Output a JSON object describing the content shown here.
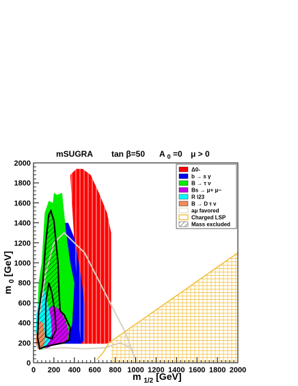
{
  "chart_data": {
    "type": "area",
    "title_parts": [
      "mSUGRA",
      "tan β=50",
      "A",
      "0",
      "=0",
      "μ > 0"
    ],
    "xlabel_main": "m",
    "xlabel_sub": "1/2",
    "xlabel_unit": " [GeV]",
    "ylabel_main": "m",
    "ylabel_sub": "0",
    "ylabel_unit": " [GeV]",
    "xlim": [
      0,
      2000
    ],
    "ylim": [
      0,
      2000
    ],
    "x_ticks": [
      "0",
      "200",
      "400",
      "600",
      "800",
      "1000",
      "1200",
      "1400",
      "1600",
      "1800",
      "2000"
    ],
    "y_ticks": [
      "0",
      "200",
      "400",
      "600",
      "800",
      "1000",
      "1200",
      "1400",
      "1600",
      "1800",
      "2000"
    ],
    "legend_position": "top-right",
    "legend": [
      {
        "label": "Δ0-",
        "color": "#ff0000",
        "style": "fill"
      },
      {
        "label": "b → s γ",
        "color": "#0000ee",
        "style": "fill"
      },
      {
        "label": "B → τ ν",
        "color": "#00ee00",
        "style": "fill"
      },
      {
        "label": "Bs → μ+ μ−",
        "color": "#cc00ee",
        "style": "fill"
      },
      {
        "label": "R l23",
        "color": "#00ffff",
        "style": "fill"
      },
      {
        "label": "B → D τ ν",
        "color": "#f08c5a",
        "style": "fill"
      },
      {
        "label": "aμ favored",
        "color": "#e8e0c8",
        "style": "outline"
      },
      {
        "label": "Charged LSP",
        "color": "#f0c040",
        "style": "outline"
      },
      {
        "label": "Mass excluded",
        "color": "#000000",
        "style": "hatch"
      }
    ],
    "regions": [
      {
        "name": "Δ0- excluded",
        "color": "#ff0000",
        "points": [
          [
            460,
            190
          ],
          [
            700,
            190
          ],
          [
            760,
            200
          ],
          [
            760,
            1300
          ],
          [
            720,
            1500
          ],
          [
            640,
            1700
          ],
          [
            560,
            1880
          ],
          [
            480,
            1940
          ],
          [
            420,
            1940
          ],
          [
            360,
            1880
          ]
        ]
      },
      {
        "name": "b → s γ excluded",
        "color": "#0000ee",
        "points": [
          [
            280,
            190
          ],
          [
            460,
            190
          ],
          [
            500,
            220
          ],
          [
            500,
            600
          ],
          [
            460,
            900
          ],
          [
            400,
            1250
          ],
          [
            340,
            1400
          ],
          [
            280,
            1400
          ]
        ]
      },
      {
        "name": "B → τ ν excluded",
        "color": "#00ee00",
        "points": [
          [
            70,
            130
          ],
          [
            120,
            140
          ],
          [
            200,
            180
          ],
          [
            280,
            190
          ],
          [
            340,
            220
          ],
          [
            380,
            400
          ],
          [
            400,
            800
          ],
          [
            360,
            1000
          ],
          [
            320,
            1300
          ],
          [
            280,
            1700
          ],
          [
            230,
            1680
          ],
          [
            200,
            1700
          ],
          [
            190,
            1600
          ],
          [
            150,
            1620
          ],
          [
            110,
            1500
          ],
          [
            80,
            1000
          ],
          [
            50,
            800
          ],
          [
            40,
            500
          ]
        ]
      },
      {
        "name": "Bs → μ+ μ− excluded",
        "color": "#cc00ee",
        "points": [
          [
            120,
            140
          ],
          [
            200,
            180
          ],
          [
            320,
            200
          ],
          [
            350,
            300
          ],
          [
            310,
            430
          ],
          [
            250,
            540
          ],
          [
            180,
            570
          ],
          [
            110,
            500
          ],
          [
            70,
            350
          ],
          [
            70,
            200
          ]
        ]
      },
      {
        "name": "R l23 excluded",
        "color": "#00ffff",
        "points": [
          [
            60,
            140
          ],
          [
            120,
            160
          ],
          [
            160,
            220
          ],
          [
            180,
            300
          ],
          [
            170,
            450
          ],
          [
            140,
            600
          ],
          [
            110,
            720
          ],
          [
            70,
            700
          ],
          [
            50,
            600
          ],
          [
            30,
            500
          ],
          [
            20,
            300
          ]
        ]
      },
      {
        "name": "B → D τ ν excluded",
        "color": "#f08c5a",
        "points": [
          [
            45,
            135
          ],
          [
            90,
            150
          ],
          [
            110,
            200
          ],
          [
            110,
            300
          ],
          [
            90,
            400
          ],
          [
            60,
            420
          ],
          [
            30,
            300
          ],
          [
            20,
            200
          ]
        ]
      }
    ],
    "charged_lsp_region": {
      "color": "#f0c040",
      "points": [
        [
          0,
          0
        ],
        [
          760,
          0
        ],
        [
          760,
          200
        ],
        [
          2000,
          1100
        ],
        [
          2000,
          0
        ]
      ]
    },
    "charged_lsp_boundary": {
      "color": "#f0c040",
      "points": [
        [
          620,
          30
        ],
        [
          680,
          100
        ],
        [
          740,
          200
        ],
        [
          2000,
          1100
        ]
      ]
    },
    "amu_favored": {
      "color": "#d8d0c0",
      "points": [
        [
          40,
          170
        ],
        [
          100,
          140
        ],
        [
          300,
          150
        ],
        [
          500,
          140
        ],
        [
          700,
          150
        ],
        [
          850,
          200
        ],
        [
          950,
          150
        ],
        [
          1000,
          30
        ],
        [
          900,
          300
        ],
        [
          700,
          700
        ],
        [
          500,
          1100
        ],
        [
          300,
          1300
        ],
        [
          200,
          1200
        ],
        [
          120,
          900
        ],
        [
          60,
          500
        ]
      ]
    },
    "mass_excluded": {
      "color": "#000000",
      "points": [
        [
          60,
          140
        ],
        [
          110,
          160
        ],
        [
          200,
          180
        ],
        [
          300,
          200
        ],
        [
          350,
          230
        ],
        [
          360,
          350
        ],
        [
          300,
          480
        ],
        [
          260,
          520
        ],
        [
          250,
          700
        ],
        [
          240,
          1000
        ],
        [
          200,
          1420
        ],
        [
          170,
          1520
        ],
        [
          150,
          1480
        ],
        [
          120,
          1200
        ],
        [
          90,
          800
        ],
        [
          50,
          500
        ],
        [
          40,
          250
        ]
      ]
    },
    "mass_excluded_inner": {
      "color": "#000000",
      "points": [
        [
          120,
          260
        ],
        [
          180,
          240
        ],
        [
          220,
          330
        ],
        [
          210,
          500
        ],
        [
          180,
          700
        ],
        [
          150,
          800
        ],
        [
          120,
          600
        ]
      ]
    }
  }
}
